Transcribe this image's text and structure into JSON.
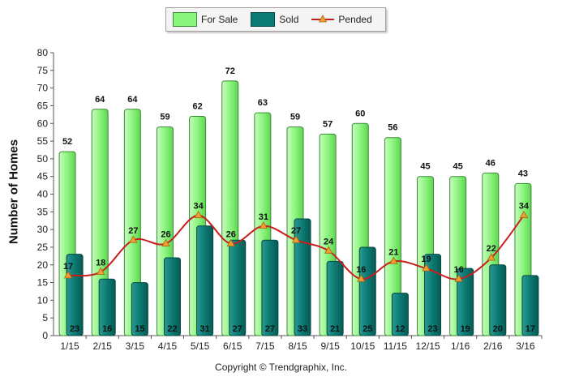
{
  "chart_data": {
    "type": "bar",
    "categories": [
      "1/15",
      "2/15",
      "3/15",
      "4/15",
      "5/15",
      "6/15",
      "7/15",
      "8/15",
      "9/15",
      "10/15",
      "11/15",
      "12/15",
      "1/16",
      "2/16",
      "3/16"
    ],
    "series": [
      {
        "name": "For Sale",
        "type": "bar",
        "color": "#8cf57e",
        "values": [
          52,
          64,
          64,
          59,
          62,
          72,
          63,
          59,
          57,
          60,
          56,
          45,
          45,
          46,
          43
        ]
      },
      {
        "name": "Sold",
        "type": "bar",
        "color": "#0b7a72",
        "values": [
          23,
          16,
          15,
          22,
          31,
          27,
          27,
          33,
          21,
          25,
          12,
          23,
          19,
          20,
          17
        ]
      },
      {
        "name": "Pended",
        "type": "line",
        "color": "#c81e1e",
        "marker_color": "#f0a030",
        "values": [
          17,
          18,
          27,
          26,
          34,
          26,
          31,
          27,
          24,
          16,
          21,
          19,
          16,
          22,
          34
        ]
      }
    ],
    "ylabel": "Number of Homes",
    "xlabel": "",
    "ylim": [
      0,
      80
    ],
    "ytick_step": 5,
    "grid": false,
    "legend_position": "top-center"
  },
  "footer": {
    "copyright": "Copyright © Trendgraphix, Inc."
  }
}
